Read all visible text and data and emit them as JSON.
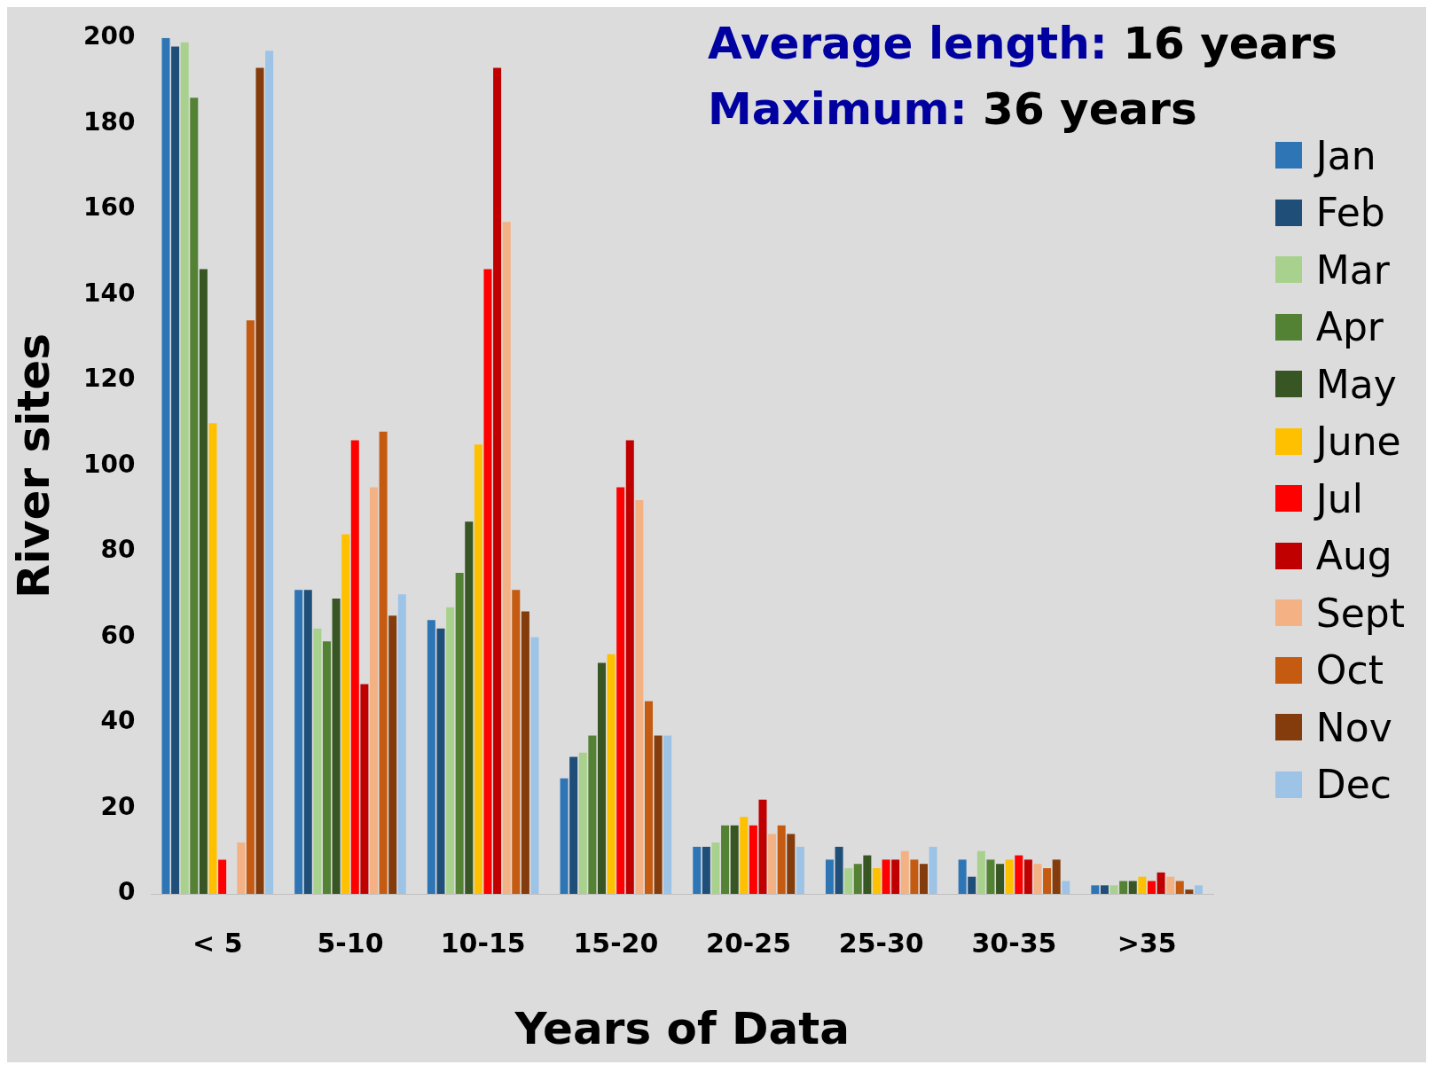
{
  "chart_data": {
    "type": "bar",
    "xlabel": "Years of Data",
    "ylabel": "River sites",
    "categories": [
      "< 5",
      "5-10",
      "10-15",
      "15-20",
      "20-25",
      "25-30",
      "30-35",
      ">35"
    ],
    "ylim": [
      0,
      200
    ],
    "yticks": [
      0,
      20,
      40,
      60,
      80,
      100,
      120,
      140,
      160,
      180,
      200
    ],
    "grid": false,
    "legend": "right",
    "annotations": [
      "Average length: 16 years",
      "Maximum: 36 years"
    ],
    "series": [
      {
        "name": "Jan",
        "color": "#2e75b6",
        "values": [
          200,
          71,
          64,
          27,
          11,
          8,
          8,
          2
        ]
      },
      {
        "name": "Feb",
        "color": "#1f4e79",
        "values": [
          198,
          71,
          62,
          32,
          11,
          11,
          4,
          2
        ]
      },
      {
        "name": "Mar",
        "color": "#a9d18e",
        "values": [
          199,
          62,
          67,
          33,
          12,
          6,
          10,
          2
        ]
      },
      {
        "name": "Apr",
        "color": "#548235",
        "values": [
          186,
          59,
          75,
          37,
          16,
          7,
          8,
          3
        ]
      },
      {
        "name": "May",
        "color": "#375623",
        "values": [
          146,
          69,
          87,
          54,
          16,
          9,
          7,
          3
        ]
      },
      {
        "name": "June",
        "color": "#ffc000",
        "values": [
          110,
          84,
          105,
          56,
          18,
          6,
          8,
          4
        ]
      },
      {
        "name": "Jul",
        "color": "#ff0000",
        "values": [
          8,
          106,
          146,
          95,
          16,
          8,
          9,
          3
        ]
      },
      {
        "name": "Aug",
        "color": "#c00000",
        "values": [
          0,
          49,
          193,
          106,
          22,
          8,
          8,
          5
        ]
      },
      {
        "name": "Sept",
        "color": "#f4b183",
        "values": [
          12,
          95,
          157,
          92,
          14,
          10,
          7,
          4
        ]
      },
      {
        "name": "Oct",
        "color": "#c55a11",
        "values": [
          134,
          108,
          71,
          45,
          16,
          8,
          6,
          3
        ]
      },
      {
        "name": "Nov",
        "color": "#843c0c",
        "values": [
          193,
          65,
          66,
          37,
          14,
          7,
          8,
          1
        ]
      },
      {
        "name": "Dec",
        "color": "#9dc3e6",
        "values": [
          197,
          70,
          60,
          37,
          11,
          11,
          3,
          2
        ]
      }
    ]
  }
}
